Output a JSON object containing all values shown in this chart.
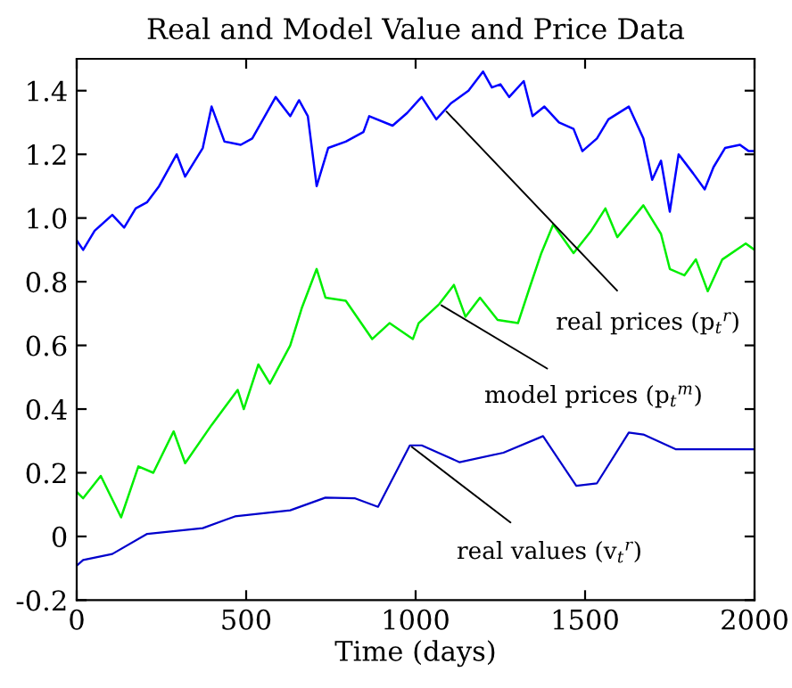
{
  "chart_data": {
    "type": "line",
    "title": "Real and Model Value and Price Data",
    "xlabel": "Time (days)",
    "xlim": [
      0,
      2000
    ],
    "ylim": [
      -0.2,
      1.5
    ],
    "xticks": [
      0,
      500,
      1000,
      1500,
      2000
    ],
    "yticks": [
      -0.2,
      0,
      0.2,
      0.4,
      0.6,
      0.8,
      {
        "value": 1.0,
        "label": "1.0"
      },
      1.2,
      1.4
    ],
    "grid": false,
    "legend": false,
    "series": [
      {
        "color": "#0000ff",
        "x": [
          0,
          19,
          53,
          105,
          140,
          174,
          208,
          243,
          295,
          320,
          372,
          398,
          436,
          484,
          518,
          587,
          630,
          656,
          682,
          708,
          742,
          794,
          846,
          863,
          932,
          975,
          1009,
          1018,
          1061,
          1104,
          1156,
          1199,
          1225,
          1250,
          1276,
          1319,
          1345,
          1380,
          1423,
          1466,
          1492,
          1535,
          1569,
          1629,
          1672,
          1698,
          1724,
          1750,
          1776,
          1819,
          1853,
          1879,
          1913,
          1957,
          1983,
          2000
        ],
        "values": [
          0.93,
          0.9,
          0.96,
          1.01,
          0.97,
          1.03,
          1.05,
          1.1,
          1.2,
          1.13,
          1.22,
          1.35,
          1.24,
          1.23,
          1.25,
          1.38,
          1.32,
          1.37,
          1.32,
          1.1,
          1.22,
          1.24,
          1.27,
          1.32,
          1.29,
          1.33,
          1.37,
          1.38,
          1.31,
          1.36,
          1.4,
          1.46,
          1.41,
          1.42,
          1.38,
          1.43,
          1.32,
          1.35,
          1.3,
          1.28,
          1.21,
          1.25,
          1.31,
          1.35,
          1.25,
          1.12,
          1.18,
          1.02,
          1.2,
          1.14,
          1.09,
          1.16,
          1.22,
          1.23,
          1.21,
          1.21
        ]
      },
      {
        "color": "#00ee00",
        "x": [
          0,
          19,
          71,
          131,
          182,
          226,
          286,
          320,
          398,
          475,
          493,
          536,
          570,
          630,
          665,
          708,
          734,
          794,
          872,
          923,
          992,
          1009,
          1070,
          1113,
          1147,
          1190,
          1242,
          1302,
          1336,
          1371,
          1406,
          1466,
          1518,
          1560,
          1595,
          1672,
          1724,
          1750,
          1793,
          1827,
          1862,
          1905,
          1974,
          2000
        ],
        "values": [
          0.14,
          0.12,
          0.19,
          0.06,
          0.22,
          0.2,
          0.33,
          0.23,
          0.35,
          0.46,
          0.4,
          0.54,
          0.48,
          0.6,
          0.72,
          0.84,
          0.75,
          0.74,
          0.62,
          0.67,
          0.62,
          0.67,
          0.73,
          0.79,
          0.69,
          0.75,
          0.68,
          0.67,
          0.78,
          0.89,
          0.98,
          0.89,
          0.96,
          1.03,
          0.94,
          1.04,
          0.95,
          0.84,
          0.82,
          0.87,
          0.77,
          0.87,
          0.92,
          0.9
        ]
      },
      {
        "color": "#0000cc",
        "x": [
          0,
          19,
          105,
          208,
          372,
          467,
          630,
          734,
          820,
          889,
          983,
          1018,
          1130,
          1259,
          1376,
          1474,
          1535,
          1629,
          1672,
          1767,
          2000
        ],
        "values": [
          -0.092,
          -0.074,
          -0.055,
          0.008,
          0.026,
          0.063,
          0.082,
          0.122,
          0.12,
          0.093,
          0.286,
          0.286,
          0.233,
          0.263,
          0.315,
          0.159,
          0.167,
          0.326,
          0.32,
          0.274,
          0.274
        ]
      }
    ],
    "annotations": [
      {
        "text": "real prices (p$_{t}$$^{r}$)",
        "x": 1086,
        "y": 1.34
      },
      {
        "text": "model prices (p$_{t}$$^{m}$)",
        "x": 1070,
        "y": 0.73
      },
      {
        "text": "real values (v$_{t}$$^{r}$)",
        "x": 983,
        "y": 0.286
      }
    ]
  }
}
